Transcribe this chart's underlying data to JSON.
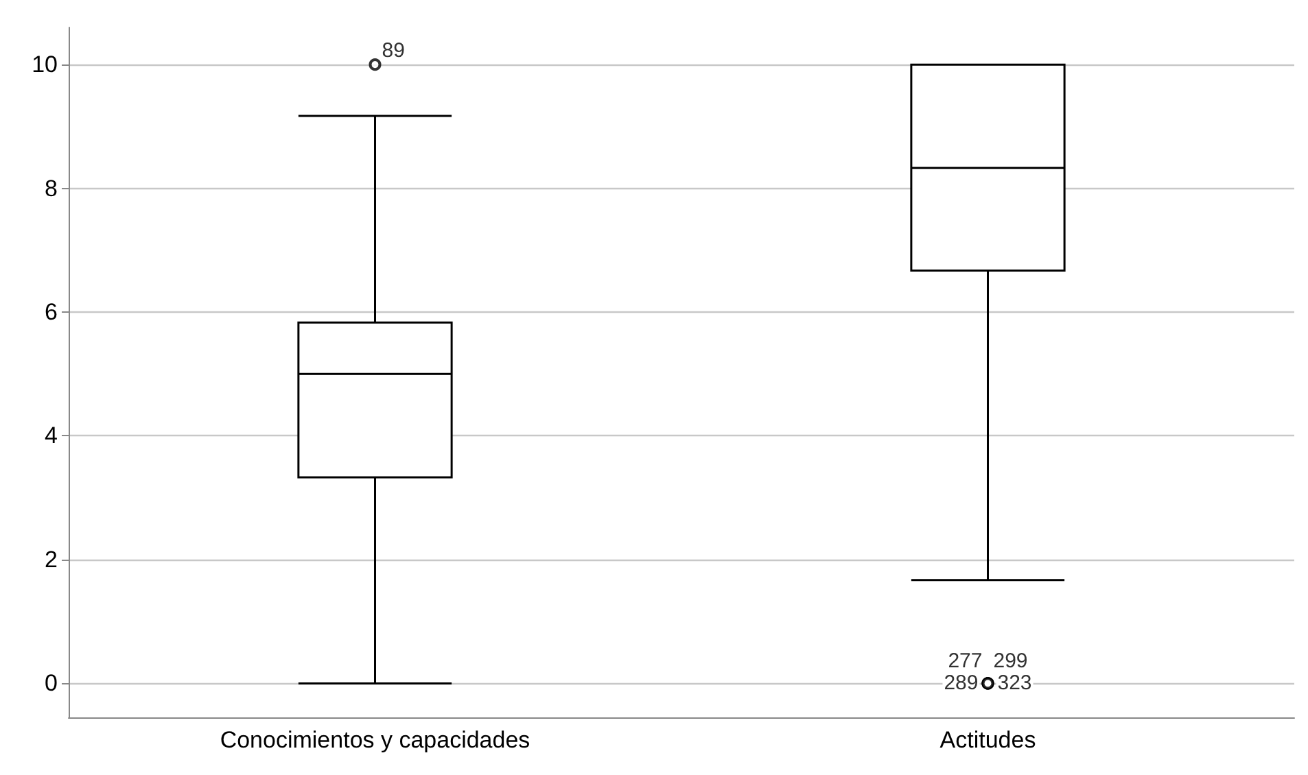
{
  "chart_data": {
    "type": "box",
    "categories": [
      "Conocimientos y capacidades",
      "Actitudes"
    ],
    "boxes": [
      {
        "low": 0,
        "q1": 3.33,
        "median": 5.0,
        "q3": 5.83,
        "high": 9.17,
        "outliers": [
          10
        ]
      },
      {
        "low": 1.67,
        "q1": 6.67,
        "median": 8.33,
        "q3": 10,
        "high": 10,
        "outliers": [
          0,
          0,
          0,
          0
        ]
      }
    ],
    "ylim": [
      -0.55,
      10.6
    ],
    "yticks": [
      0,
      2,
      4,
      6,
      8,
      10
    ],
    "grid": "y",
    "annotations": [
      "89",
      "277",
      "299",
      "289",
      "323"
    ]
  }
}
